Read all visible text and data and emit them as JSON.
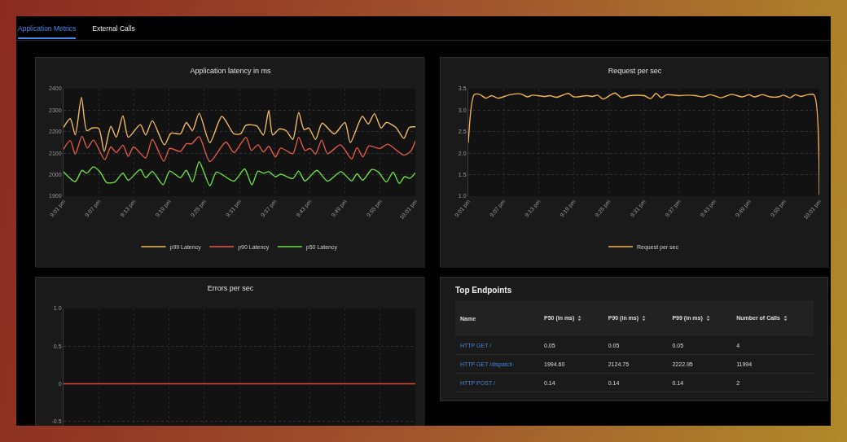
{
  "chart_data": [
    {
      "type": "other",
      "annotations": [
        "Application Metrics",
        "External Calls"
      ]
    },
    {
      "type": "line",
      "title": "Application latency in ms",
      "xlim": [
        21.0167,
        22.0167
      ],
      "ylim": [
        1900,
        2400
      ],
      "yticks": [
        1900,
        2000,
        2100,
        2200,
        2300,
        2400
      ],
      "grid": true,
      "legend": "bottom",
      "xticks": [
        {
          "value": 21.0167,
          "label": "9:01 pm"
        },
        {
          "value": 21.1167,
          "label": "9:07 pm"
        },
        {
          "value": 21.2167,
          "label": "9:13 pm"
        },
        {
          "value": 21.3167,
          "label": "9:19 pm"
        },
        {
          "value": 21.4167,
          "label": "9:25 pm"
        },
        {
          "value": 21.5167,
          "label": "9:31 pm"
        },
        {
          "value": 21.6167,
          "label": "9:37 pm"
        },
        {
          "value": 21.7167,
          "label": "9:43 pm"
        },
        {
          "value": 21.8167,
          "label": "9:49 pm"
        },
        {
          "value": 21.9167,
          "label": "9:55 pm"
        },
        {
          "value": 22.0167,
          "label": "10:01 pm"
        }
      ],
      "series": [
        {
          "name": "p99 Latency",
          "color": "#f3bd63",
          "x": [
            21.0167,
            21.0357,
            21.0501,
            21.0676,
            21.0828,
            21.098,
            21.117,
            21.1323,
            21.1513,
            21.1665,
            21.1855,
            21.2007,
            21.2349,
            21.2501,
            21.2691,
            21.3034,
            21.3224,
            21.349,
            21.3657,
            21.3832,
            21.4022,
            21.4326,
            21.4669,
            21.5011,
            21.5201,
            21.5353,
            21.5657,
            21.5847,
            21.6,
            21.6113,
            21.6303,
            21.6494,
            21.6684,
            21.6851,
            21.7003,
            21.714,
            21.733,
            21.752,
            21.7862,
            21.8167,
            21.8319,
            21.8661,
            21.8828,
            21.9003,
            21.9193,
            21.9345,
            21.9612,
            21.984,
            21.9992,
            22.0167
          ],
          "values": [
            2220,
            2261,
            2185,
            2359,
            2205,
            2217,
            2215,
            2108,
            2225,
            2174,
            2274,
            2174,
            2233,
            2185,
            2251,
            2139,
            2193,
            2190,
            2243,
            2205,
            2286,
            2149,
            2271,
            2190,
            2190,
            2230,
            2227,
            2185,
            2299,
            2185,
            2213,
            2205,
            2164,
            2289,
            2210,
            2217,
            2164,
            2240,
            2190,
            2243,
            2149,
            2271,
            2236,
            2284,
            2217,
            2243,
            2220,
            2169,
            2220,
            2223
          ]
        },
        {
          "name": "p90 Latency",
          "color": "#e65a4a",
          "x": [
            21.0167,
            21.0357,
            21.0501,
            21.0691,
            21.0844,
            21.1018,
            21.1338,
            21.1513,
            21.1665,
            21.1855,
            21.2007,
            21.2159,
            21.2501,
            21.2691,
            21.3018,
            21.3186,
            21.349,
            21.3657,
            21.3809,
            21.4022,
            21.4326,
            21.4783,
            21.5011,
            21.5353,
            21.5505,
            21.5695,
            21.5847,
            21.6,
            21.6189,
            21.6342,
            21.6684,
            21.6851,
            21.7026,
            21.7178,
            21.733,
            21.7505,
            21.7672,
            21.8037,
            21.8357,
            21.8509,
            21.8676,
            21.8851,
            21.9155,
            21.9383,
            21.984,
            22.003,
            22.0167
          ],
          "values": [
            2118,
            2159,
            2096,
            2179,
            2124,
            2161,
            2070,
            2129,
            2103,
            2137,
            2085,
            2129,
            2078,
            2164,
            2063,
            2122,
            2108,
            2144,
            2144,
            2177,
            2061,
            2152,
            2103,
            2174,
            2113,
            2139,
            2105,
            2132,
            2083,
            2124,
            2098,
            2174,
            2113,
            2122,
            2096,
            2161,
            2098,
            2139,
            2073,
            2126,
            2083,
            2134,
            2122,
            2142,
            2091,
            2108,
            2157
          ]
        },
        {
          "name": "p50 Latency",
          "color": "#6ee043",
          "x": [
            21.0167,
            21.0501,
            21.0691,
            21.0828,
            21.1018,
            21.1209,
            21.1399,
            21.1627,
            21.1855,
            21.2007,
            21.2349,
            21.2501,
            21.2691,
            21.2996,
            21.3186,
            21.349,
            21.3657,
            21.3832,
            21.4022,
            21.4326,
            21.4516,
            21.5011,
            21.5315,
            21.552,
            21.5695,
            21.5847,
            21.6,
            21.6189,
            21.6342,
            21.6684,
            21.6851,
            21.7026,
            21.7368,
            21.7672,
            21.8053,
            21.8357,
            21.8509,
            21.8676,
            21.8927,
            21.9117,
            21.9345,
            21.9535,
            21.971,
            21.9863,
            22.0015,
            22.0167
          ],
          "values": [
            2014,
            1968,
            2020,
            2007,
            2037,
            2012,
            1963,
            1966,
            2007,
            1974,
            2024,
            1986,
            2015,
            1953,
            2017,
            1986,
            2020,
            1966,
            2060,
            1949,
            2012,
            1970,
            2027,
            1953,
            2017,
            2007,
            2014,
            1991,
            2002,
            1982,
            2017,
            1971,
            2020,
            1970,
            2014,
            1971,
            2004,
            1974,
            2024,
            2012,
            1966,
            2012,
            1959,
            1991,
            1983,
            2009
          ]
        }
      ]
    },
    {
      "type": "line",
      "title": "Request per sec",
      "xlim": [
        21.0167,
        22.0167
      ],
      "ylim": [
        1.0,
        3.5
      ],
      "yticks": [
        {
          "value": 1,
          "label": "1.0"
        },
        1.5,
        {
          "value": 2,
          "label": "2.0"
        },
        2.5,
        {
          "value": 3,
          "label": "3.0"
        },
        3.5
      ],
      "grid": true,
      "legend": "bottom",
      "xticks": [
        {
          "value": 21.0167,
          "label": "9:01 pm"
        },
        {
          "value": 21.1167,
          "label": "9:07 pm"
        },
        {
          "value": 21.2167,
          "label": "9:13 pm"
        },
        {
          "value": 21.3167,
          "label": "9:19 pm"
        },
        {
          "value": 21.4167,
          "label": "9:25 pm"
        },
        {
          "value": 21.5167,
          "label": "9:31 pm"
        },
        {
          "value": 21.6167,
          "label": "9:37 pm"
        },
        {
          "value": 21.7167,
          "label": "9:43 pm"
        },
        {
          "value": 21.8167,
          "label": "9:49 pm"
        },
        {
          "value": 21.9167,
          "label": "9:55 pm"
        },
        {
          "value": 22.0167,
          "label": "10:01 pm"
        }
      ],
      "series": [
        {
          "name": "Request per sec",
          "color": "#f2b552",
          "x": [
            21.0167,
            21.0333,
            21.0484,
            21.0673,
            21.0825,
            21.1014,
            21.1354,
            21.1657,
            21.1846,
            21.1998,
            21.2338,
            21.2489,
            21.2678,
            21.3019,
            21.317,
            21.3549,
            21.37,
            21.3851,
            21.4002,
            21.4343,
            21.4532,
            21.4759,
            21.5175,
            21.5364,
            21.5516,
            21.5667,
            21.5818,
            21.6196,
            21.6423,
            21.665,
            21.684,
            21.7066,
            21.7369,
            21.7672,
            21.7974,
            21.8163,
            21.8315,
            21.8542,
            21.8769,
            21.8996,
            21.9147,
            21.9336,
            21.9488,
            21.9639,
            21.9828,
            22.0017,
            22.0167
          ],
          "values": [
            2.24,
            3.36,
            3.37,
            3.28,
            3.34,
            3.28,
            3.36,
            3.38,
            3.31,
            3.35,
            3.32,
            3.34,
            3.3,
            3.39,
            3.31,
            3.34,
            3.32,
            3.35,
            3.26,
            3.4,
            3.29,
            3.34,
            3.34,
            3.27,
            3.39,
            3.29,
            3.36,
            3.34,
            3.35,
            3.34,
            3.31,
            3.36,
            3.29,
            3.37,
            3.31,
            3.36,
            3.31,
            3.36,
            3.31,
            3.31,
            3.35,
            3.29,
            3.36,
            3.32,
            3.36,
            3.36,
            1.03
          ]
        }
      ]
    },
    {
      "type": "line",
      "title": "Errors per sec",
      "xlim": [
        21.0167,
        22.0167
      ],
      "ylim": [
        -0.6,
        1.0
      ],
      "yticks": [
        {
          "value": -0.5,
          "label": "-0.5"
        },
        0,
        0.5,
        {
          "value": 1,
          "label": "1.0"
        }
      ],
      "grid": true,
      "tick_labels": "y",
      "xticks": [
        {
          "value": 21.0167,
          "label": null
        },
        {
          "value": 21.1167,
          "label": null
        },
        {
          "value": 21.2167,
          "label": null
        },
        {
          "value": 21.3167,
          "label": null
        },
        {
          "value": 21.4167,
          "label": null
        },
        {
          "value": 21.5167,
          "label": null
        },
        {
          "value": 21.6167,
          "label": null
        },
        {
          "value": 21.7167,
          "label": null
        },
        {
          "value": 21.8167,
          "label": null
        },
        {
          "value": 21.9167,
          "label": null
        },
        {
          "value": 22.0167,
          "label": null
        }
      ],
      "series": [
        {
          "color": "#e0483a",
          "x": [
            21.0167,
            22.0167
          ],
          "values": [
            0,
            0
          ]
        }
      ]
    },
    {
      "type": "other",
      "title": "Top Endpoints",
      "xlabel": "Name",
      "categories": [
        "HTTP GET /",
        "HTTP GET /dispatch",
        "HTTP POST /"
      ],
      "series": [
        {
          "name": "P50 (in ms)",
          "values": [
            0.05,
            1994.6,
            0.14
          ],
          "value_labels": [
            "0.05",
            "1994.60",
            "0.14"
          ]
        },
        {
          "name": "P90 (in ms)",
          "values": [
            0.05,
            2124.75,
            0.14
          ],
          "value_labels": [
            "0.05",
            "2124.75",
            "0.14"
          ]
        },
        {
          "name": "P99 (in ms)",
          "values": [
            0.05,
            2222.95,
            0.14
          ],
          "value_labels": [
            "0.05",
            "2222.95",
            "0.14"
          ]
        },
        {
          "name": "Number of Calls",
          "values": [
            4,
            11994,
            2
          ],
          "value_labels": [
            "4",
            "11994",
            "2"
          ]
        }
      ]
    }
  ]
}
